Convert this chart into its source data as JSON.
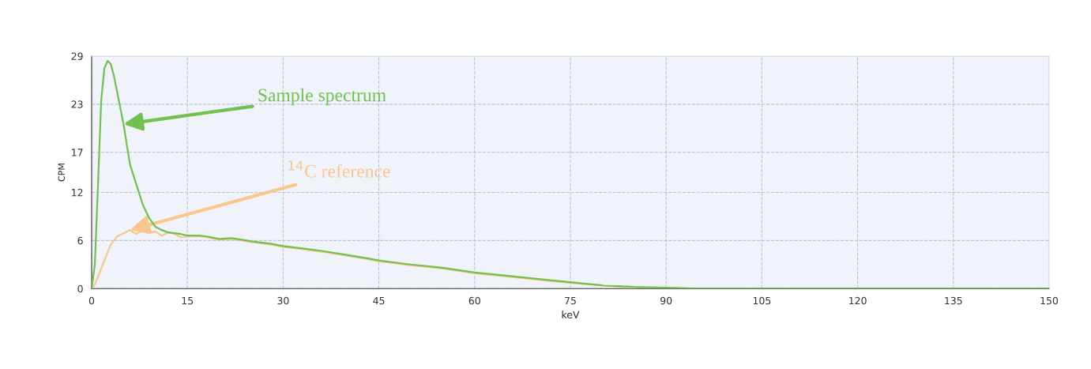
{
  "chart_data": {
    "type": "line",
    "xlabel": "keV",
    "ylabel": "CPM",
    "xlim": [
      0,
      150
    ],
    "xticks": [
      0,
      15,
      30,
      45,
      60,
      75,
      90,
      105,
      120,
      135,
      150
    ],
    "ylim": [
      0,
      29
    ],
    "yticks": [
      0,
      6,
      12,
      17,
      23,
      29
    ],
    "grid": true,
    "marker": "none",
    "line_style": "solid",
    "series": [
      {
        "color": "#f9c68e",
        "x": [
          0,
          0.5,
          1,
          2,
          3,
          4,
          5,
          6,
          7,
          8,
          9,
          10,
          11,
          12,
          13,
          14,
          15,
          17,
          18,
          20,
          22,
          25,
          28,
          30,
          33,
          36,
          40,
          43,
          45,
          48,
          50,
          55,
          60,
          65,
          70,
          75,
          80,
          85
        ],
        "values": [
          0,
          0.5,
          1.5,
          3.5,
          5.5,
          6.5,
          6.9,
          7.3,
          6.8,
          7.3,
          7.0,
          7.1,
          6.6,
          7.0,
          6.8,
          6.4,
          6.5,
          6.5,
          6.4,
          6.1,
          6.2,
          5.8,
          5.5,
          5.2,
          4.9,
          4.6,
          4.1,
          3.7,
          3.4,
          3.1,
          2.9,
          2.5,
          1.9,
          1.5,
          1.1,
          0.7,
          0.4,
          0.1
        ]
      },
      {
        "color": "#72c04f",
        "x": [
          0,
          0.5,
          1,
          1.5,
          2,
          2.5,
          3,
          3.5,
          4,
          5,
          6,
          7,
          8,
          9,
          10,
          11,
          12,
          13,
          14,
          15,
          17,
          18,
          20,
          22,
          25,
          28,
          30,
          33,
          36,
          40,
          43,
          45,
          48,
          50,
          55,
          60,
          65,
          70,
          75,
          80,
          85,
          90,
          95,
          100,
          110,
          120,
          130,
          150
        ],
        "values": [
          0,
          3,
          13,
          23.5,
          27.5,
          28.4,
          28,
          26.5,
          24.5,
          20.5,
          15.5,
          13,
          10.5,
          8.8,
          7.7,
          7.3,
          7.0,
          6.9,
          6.8,
          6.6,
          6.6,
          6.5,
          6.2,
          6.3,
          5.9,
          5.6,
          5.3,
          5.0,
          4.7,
          4.2,
          3.8,
          3.5,
          3.2,
          3.0,
          2.6,
          2.0,
          1.6,
          1.2,
          0.8,
          0.4,
          0.2,
          0.1,
          0,
          0,
          0,
          0,
          0,
          0
        ]
      }
    ],
    "annotations": [
      {
        "text": "$^{14}$C reference",
        "x": 6,
        "y": 7.3
      },
      {
        "text": "Sample spectrum",
        "x": 5,
        "y": 20.5
      }
    ]
  }
}
